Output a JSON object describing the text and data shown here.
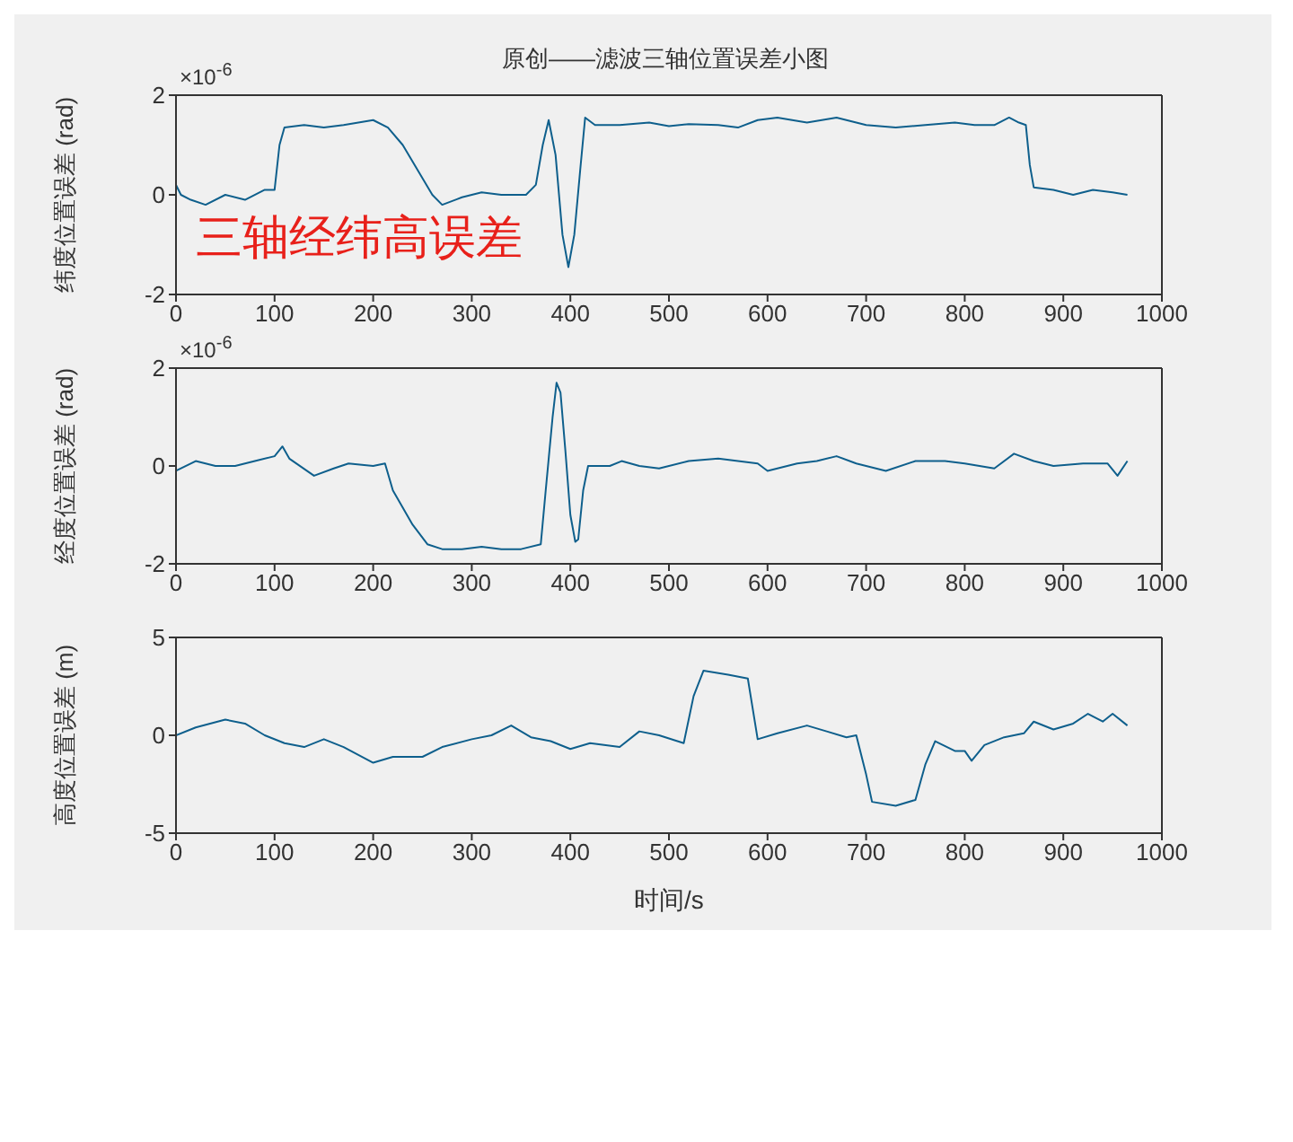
{
  "chart_data": [
    {
      "type": "line",
      "title": "原创——滤波三轴位置误差小图",
      "ylabel": "纬度位置误差 (rad)",
      "annotations": [
        "×10$^{-6}$",
        "三轴经纬高误差"
      ],
      "grid": false,
      "legend": false,
      "xlim": [
        0,
        1000
      ],
      "xticks": [
        0,
        100,
        200,
        300,
        400,
        500,
        600,
        700,
        800,
        900,
        1000
      ],
      "ylim": [
        -2,
        2
      ],
      "yticks": [
        -2,
        0,
        2
      ],
      "series": [
        {
          "color": "#0e5f8c",
          "x": [
            0,
            5,
            15,
            30,
            50,
            70,
            90,
            100,
            105,
            110,
            130,
            150,
            170,
            200,
            215,
            230,
            245,
            260,
            270,
            290,
            310,
            330,
            355,
            365,
            372,
            378,
            385,
            392,
            398,
            404,
            410,
            415,
            425,
            450,
            480,
            500,
            520,
            550,
            570,
            590,
            610,
            640,
            670,
            700,
            730,
            760,
            790,
            810,
            830,
            845,
            855,
            862,
            866,
            870,
            890,
            910,
            930,
            950,
            965
          ],
          "values": [
            0.2,
            0,
            -0.1,
            -0.2,
            0,
            -0.1,
            0.1,
            0.1,
            1.0,
            1.35,
            1.4,
            1.35,
            1.4,
            1.5,
            1.35,
            1.0,
            0.5,
            0,
            -0.2,
            -0.05,
            0.05,
            0,
            0,
            0.2,
            1.0,
            1.5,
            0.8,
            -0.8,
            -1.45,
            -0.8,
            0.5,
            1.55,
            1.4,
            1.4,
            1.45,
            1.38,
            1.42,
            1.4,
            1.35,
            1.5,
            1.55,
            1.45,
            1.55,
            1.4,
            1.35,
            1.4,
            1.45,
            1.4,
            1.4,
            1.55,
            1.45,
            1.4,
            0.6,
            0.15,
            0.1,
            0,
            0.1,
            0.05,
            0
          ]
        }
      ]
    },
    {
      "type": "line",
      "ylabel": "经度位置误差 (rad)",
      "annotations": [
        "×10$^{-6}$"
      ],
      "grid": false,
      "legend": false,
      "xlim": [
        0,
        1000
      ],
      "xticks": [
        0,
        100,
        200,
        300,
        400,
        500,
        600,
        700,
        800,
        900,
        1000
      ],
      "ylim": [
        -2,
        2
      ],
      "yticks": [
        -2,
        0,
        2
      ],
      "series": [
        {
          "color": "#0e5f8c",
          "x": [
            0,
            20,
            40,
            60,
            80,
            100,
            108,
            115,
            140,
            160,
            175,
            200,
            212,
            220,
            240,
            255,
            270,
            290,
            310,
            330,
            350,
            370,
            375,
            382,
            386,
            390,
            395,
            400,
            405,
            408,
            413,
            418,
            440,
            452,
            470,
            490,
            520,
            550,
            570,
            590,
            600,
            630,
            650,
            670,
            690,
            720,
            750,
            780,
            800,
            830,
            850,
            870,
            890,
            920,
            945,
            955,
            965
          ],
          "values": [
            -0.1,
            0.1,
            0,
            0,
            0.1,
            0.2,
            0.4,
            0.15,
            -0.2,
            -0.05,
            0.05,
            0,
            0.05,
            -0.5,
            -1.2,
            -1.6,
            -1.7,
            -1.7,
            -1.65,
            -1.7,
            -1.7,
            -1.6,
            -0.5,
            1.0,
            1.7,
            1.5,
            0.3,
            -1.0,
            -1.55,
            -1.5,
            -0.5,
            0,
            0,
            0.1,
            0,
            -0.05,
            0.1,
            0.15,
            0.1,
            0.05,
            -0.1,
            0.05,
            0.1,
            0.2,
            0.05,
            -0.1,
            0.1,
            0.1,
            0.05,
            -0.05,
            0.25,
            0.1,
            0,
            0.05,
            0.05,
            -0.2,
            0.1
          ]
        }
      ]
    },
    {
      "type": "line",
      "xlabel": "时间/s",
      "ylabel": "高度位置误差 (m)",
      "grid": false,
      "legend": false,
      "xlim": [
        0,
        1000
      ],
      "xticks": [
        0,
        100,
        200,
        300,
        400,
        500,
        600,
        700,
        800,
        900,
        1000
      ],
      "ylim": [
        -5,
        5
      ],
      "yticks": [
        -5,
        0,
        5
      ],
      "series": [
        {
          "color": "#0e5f8c",
          "x": [
            0,
            20,
            50,
            70,
            90,
            110,
            130,
            150,
            170,
            200,
            220,
            250,
            270,
            300,
            320,
            340,
            360,
            380,
            400,
            420,
            450,
            470,
            490,
            515,
            525,
            535,
            560,
            580,
            590,
            610,
            640,
            660,
            680,
            690,
            700,
            706,
            730,
            750,
            760,
            770,
            790,
            800,
            807,
            820,
            840,
            860,
            870,
            890,
            910,
            925,
            940,
            950,
            965
          ],
          "values": [
            0,
            0.4,
            0.8,
            0.6,
            0,
            -0.4,
            -0.6,
            -0.2,
            -0.6,
            -1.4,
            -1.1,
            -1.1,
            -0.6,
            -0.2,
            0,
            0.5,
            -0.1,
            -0.3,
            -0.7,
            -0.4,
            -0.6,
            0.2,
            0,
            -0.4,
            2,
            3.3,
            3.1,
            2.9,
            -0.2,
            0.1,
            0.5,
            0.2,
            -0.1,
            0,
            -2,
            -3.4,
            -3.6,
            -3.3,
            -1.5,
            -0.3,
            -0.8,
            -0.8,
            -1.3,
            -0.5,
            -0.1,
            0.1,
            0.7,
            0.3,
            0.6,
            1.1,
            0.7,
            1.1,
            0.5
          ]
        }
      ]
    }
  ]
}
